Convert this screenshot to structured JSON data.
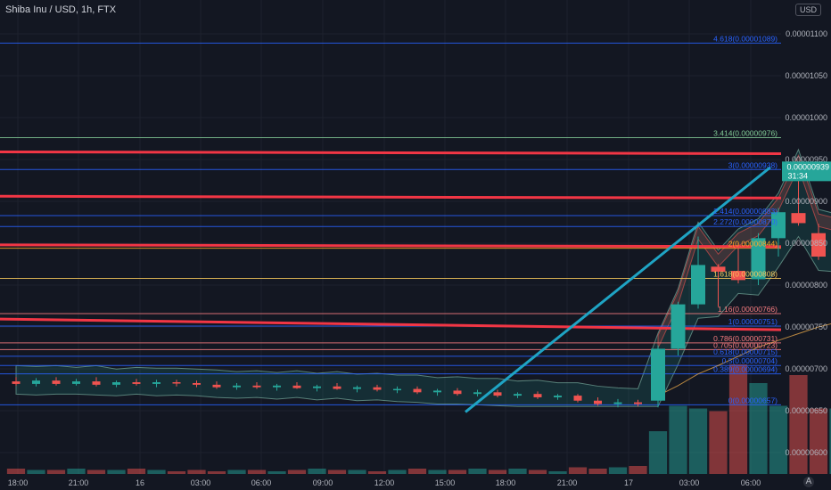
{
  "header": {
    "title": "Shiba Inu / USD, 1h, FTX",
    "currency_button": "USD",
    "axis_button": "A"
  },
  "colors": {
    "background": "#131722",
    "up": "#26a69a",
    "down": "#ef5350",
    "resistance": "#f23645",
    "trendline": "#1fa4c4",
    "fib_blue": "#2962ff",
    "fib_gold": "#f7c85b",
    "fib_red": "#f77c80",
    "fib_green": "#81c995",
    "fib_orange": "#ffa726"
  },
  "chart_data": {
    "type": "candlestick",
    "title": "Shiba Inu / USD, 1h, FTX",
    "x_ticks": [
      "18:00",
      "21:00",
      "16",
      "03:00",
      "06:00",
      "09:00",
      "12:00",
      "15:00",
      "18:00",
      "21:00",
      "17",
      "03:00",
      "06:00"
    ],
    "y_ticks": [
      "0.00001100",
      "0.00001050",
      "0.00001000",
      "0.00000950",
      "0.00000900",
      "0.00000850",
      "0.00000800",
      "0.00000750",
      "0.00000700",
      "0.00000650",
      "0.00000600"
    ],
    "ylim": [
      5.905e-06,
      1.12e-05
    ],
    "current_price": {
      "label": "0.00000939",
      "countdown": "31:34",
      "value": 9.39e-06
    },
    "fib_levels": [
      {
        "label": "4.618(0.00001089)",
        "value": 1.089e-05,
        "color": "#2962ff"
      },
      {
        "label": "3.414(0.00000976)",
        "value": 9.76e-06,
        "color": "#81c995"
      },
      {
        "label": "3(0.00000938)",
        "value": 9.38e-06,
        "color": "#2962ff"
      },
      {
        "label": "2.414(0.00000883)",
        "value": 8.83e-06,
        "color": "#2962ff"
      },
      {
        "label": "2.272(0.00000870)",
        "value": 8.7e-06,
        "color": "#2962ff"
      },
      {
        "label": "2(0.00000844)",
        "value": 8.44e-06,
        "color": "#ffa726"
      },
      {
        "label": "1.618(0.00000808)",
        "value": 8.08e-06,
        "color": "#f7c85b"
      },
      {
        "label": "1.16(0.00000766)",
        "value": 7.66e-06,
        "color": "#f77c80"
      },
      {
        "label": "1(0.00000751)",
        "value": 7.51e-06,
        "color": "#2962ff"
      },
      {
        "label": "0.786(0.00000731)",
        "value": 7.31e-06,
        "color": "#f77c80"
      },
      {
        "label": "0.705(0.00000723)",
        "value": 7.23e-06,
        "color": "#f77c80"
      },
      {
        "label": "0.618(0.00000715)",
        "value": 7.15e-06,
        "color": "#2962ff"
      },
      {
        "label": "0.5(0.00000704)",
        "value": 7.04e-06,
        "color": "#2962ff"
      },
      {
        "label": "0.389(0.00000694)",
        "value": 6.94e-06,
        "color": "#2962ff"
      },
      {
        "label": "0(0.00000657)",
        "value": 6.57e-06,
        "color": "#2962ff"
      }
    ],
    "resistance_lines": [
      9.58e-06,
      9.05e-06,
      8.47e-06,
      7.53e-06
    ],
    "candles": [
      {
        "o": 6.85e-06,
        "h": 6.9e-06,
        "l": 6.8e-06,
        "c": 6.82e-06
      },
      {
        "o": 6.82e-06,
        "h": 6.89e-06,
        "l": 6.79e-06,
        "c": 6.86e-06
      },
      {
        "o": 6.86e-06,
        "h": 6.9e-06,
        "l": 6.8e-06,
        "c": 6.82e-06
      },
      {
        "o": 6.82e-06,
        "h": 6.88e-06,
        "l": 6.8e-06,
        "c": 6.85e-06
      },
      {
        "o": 6.85e-06,
        "h": 6.9e-06,
        "l": 6.79e-06,
        "c": 6.81e-06
      },
      {
        "o": 6.81e-06,
        "h": 6.86e-06,
        "l": 6.78e-06,
        "c": 6.84e-06
      },
      {
        "o": 6.84e-06,
        "h": 6.88e-06,
        "l": 6.8e-06,
        "c": 6.82e-06
      },
      {
        "o": 6.82e-06,
        "h": 6.87e-06,
        "l": 6.78e-06,
        "c": 6.84e-06
      },
      {
        "o": 6.84e-06,
        "h": 6.87e-06,
        "l": 6.79e-06,
        "c": 6.83e-06
      },
      {
        "o": 6.83e-06,
        "h": 6.86e-06,
        "l": 6.78e-06,
        "c": 6.81e-06
      },
      {
        "o": 6.81e-06,
        "h": 6.85e-06,
        "l": 6.76e-06,
        "c": 6.78e-06
      },
      {
        "o": 6.78e-06,
        "h": 6.83e-06,
        "l": 6.75e-06,
        "c": 6.8e-06
      },
      {
        "o": 6.8e-06,
        "h": 6.84e-06,
        "l": 6.76e-06,
        "c": 6.78e-06
      },
      {
        "o": 6.78e-06,
        "h": 6.82e-06,
        "l": 6.74e-06,
        "c": 6.8e-06
      },
      {
        "o": 6.8e-06,
        "h": 6.84e-06,
        "l": 6.76e-06,
        "c": 6.77e-06
      },
      {
        "o": 6.77e-06,
        "h": 6.81e-06,
        "l": 6.73e-06,
        "c": 6.79e-06
      },
      {
        "o": 6.79e-06,
        "h": 6.83e-06,
        "l": 6.75e-06,
        "c": 6.76e-06
      },
      {
        "o": 6.76e-06,
        "h": 6.8e-06,
        "l": 6.72e-06,
        "c": 6.78e-06
      },
      {
        "o": 6.78e-06,
        "h": 6.81e-06,
        "l": 6.73e-06,
        "c": 6.75e-06
      },
      {
        "o": 6.75e-06,
        "h": 6.79e-06,
        "l": 6.71e-06,
        "c": 6.76e-06
      },
      {
        "o": 6.76e-06,
        "h": 6.79e-06,
        "l": 6.7e-06,
        "c": 6.72e-06
      },
      {
        "o": 6.72e-06,
        "h": 6.76e-06,
        "l": 6.68e-06,
        "c": 6.74e-06
      },
      {
        "o": 6.74e-06,
        "h": 6.77e-06,
        "l": 6.68e-06,
        "c": 6.7e-06
      },
      {
        "o": 6.7e-06,
        "h": 6.75e-06,
        "l": 6.67e-06,
        "c": 6.72e-06
      },
      {
        "o": 6.72e-06,
        "h": 6.75e-06,
        "l": 6.66e-06,
        "c": 6.68e-06
      },
      {
        "o": 6.68e-06,
        "h": 6.72e-06,
        "l": 6.65e-06,
        "c": 6.7e-06
      },
      {
        "o": 6.7e-06,
        "h": 6.73e-06,
        "l": 6.64e-06,
        "c": 6.66e-06
      },
      {
        "o": 6.66e-06,
        "h": 6.7e-06,
        "l": 6.63e-06,
        "c": 6.68e-06
      },
      {
        "o": 6.68e-06,
        "h": 6.7e-06,
        "l": 6.6e-06,
        "c": 6.62e-06
      },
      {
        "o": 6.62e-06,
        "h": 6.66e-06,
        "l": 6.56e-06,
        "c": 6.58e-06
      },
      {
        "o": 6.58e-06,
        "h": 6.64e-06,
        "l": 6.54e-06,
        "c": 6.6e-06
      },
      {
        "o": 6.6e-06,
        "h": 6.63e-06,
        "l": 6.55e-06,
        "c": 6.58e-06
      },
      {
        "o": 6.62e-06,
        "h": 7.28e-06,
        "l": 6.54e-06,
        "c": 7.24e-06
      },
      {
        "o": 7.24e-06,
        "h": 7.8e-06,
        "l": 7.16e-06,
        "c": 7.77e-06
      },
      {
        "o": 7.77e-06,
        "h": 8.58e-06,
        "l": 7.72e-06,
        "c": 8.24e-06
      },
      {
        "o": 8.22e-06,
        "h": 8.25e-06,
        "l": 7.74e-06,
        "c": 8.16e-06
      },
      {
        "o": 8.17e-06,
        "h": 8.5e-06,
        "l": 8.02e-06,
        "c": 8.06e-06
      },
      {
        "o": 8.07e-06,
        "h": 8.62e-06,
        "l": 8e-06,
        "c": 8.56e-06
      },
      {
        "o": 8.56e-06,
        "h": 8.92e-06,
        "l": 8.34e-06,
        "c": 8.87e-06
      },
      {
        "o": 8.86e-06,
        "h": 9.43e-06,
        "l": 8.71e-06,
        "c": 8.74e-06
      },
      {
        "o": 8.62e-06,
        "h": 8.73e-06,
        "l": 8.3e-06,
        "c": 8.34e-06
      },
      {
        "o": 8.34e-06,
        "h": 8.67e-06,
        "l": 8.28e-06,
        "c": 8.6e-06
      },
      {
        "o": 8.68e-06,
        "h": 9.46e-06,
        "l": 8.58e-06,
        "c": 9.07e-06
      },
      {
        "o": 9.25e-06,
        "h": 9.44e-06,
        "l": 8.97e-06,
        "c": 9.41e-06
      }
    ],
    "volume_relative": [
      0.04,
      0.03,
      0.03,
      0.04,
      0.03,
      0.03,
      0.04,
      0.03,
      0.02,
      0.03,
      0.02,
      0.03,
      0.03,
      0.02,
      0.03,
      0.04,
      0.03,
      0.03,
      0.02,
      0.03,
      0.04,
      0.03,
      0.03,
      0.04,
      0.03,
      0.04,
      0.03,
      0.02,
      0.05,
      0.04,
      0.05,
      0.06,
      0.32,
      0.51,
      0.49,
      0.47,
      0.82,
      0.68,
      0.51,
      0.74,
      0.49,
      0.49,
      0.49,
      0.39
    ],
    "ema_line": [
      6.68e-06,
      6.8e-06,
      6.94e-06,
      7.04e-06,
      7.15e-06,
      7.26e-06,
      7.34e-06,
      7.42e-06,
      7.5e-06,
      7.56e-06,
      7.64e-06,
      7.75e-06
    ]
  }
}
